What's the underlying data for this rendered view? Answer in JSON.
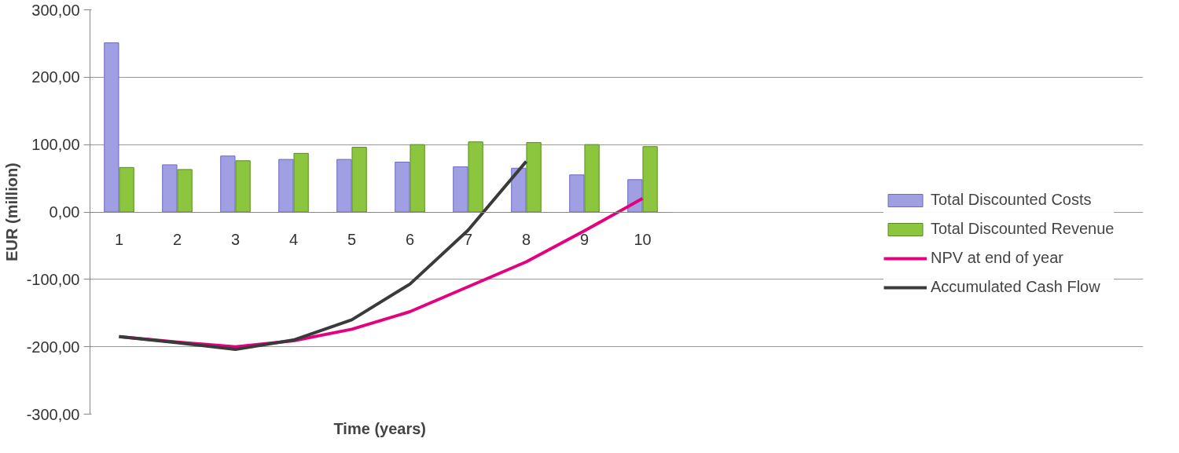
{
  "chart_data": {
    "type": "bar",
    "xlabel": "Time (years)",
    "ylabel": "EUR (million)",
    "categories": [
      "1",
      "2",
      "3",
      "4",
      "5",
      "6",
      "7",
      "8",
      "9",
      "10"
    ],
    "series": [
      {
        "name": "Total Discounted Costs",
        "color": "#a09fe3",
        "values": [
          251,
          70,
          83,
          78,
          78,
          74,
          67,
          65,
          55,
          48
        ]
      },
      {
        "name": "Total Discounted Revenue",
        "color": "#8cc63f",
        "values": [
          66,
          63,
          76,
          87,
          96,
          100,
          104,
          103,
          100,
          97
        ]
      },
      {
        "name": "NPV at end of year",
        "type": "line",
        "color": "#e5007e",
        "values": [
          -185,
          -193,
          -200,
          -191,
          -174,
          -148,
          -111,
          -74,
          -28,
          20
        ]
      },
      {
        "name": "Accumulated Cash Flow",
        "type": "line",
        "color": "#3a3a3a",
        "values": [
          -185,
          -194,
          -204,
          -190,
          -160,
          -107,
          -27,
          75,
          null,
          null
        ]
      }
    ],
    "ylim": [
      -300,
      300
    ],
    "yticks": [
      {
        "value": -300,
        "label": "-300,00"
      },
      {
        "value": -200,
        "label": "-200,00"
      },
      {
        "value": -100,
        "label": "-100,00"
      },
      {
        "value": 0,
        "label": "0,00"
      },
      {
        "value": 100,
        "label": "100,00"
      },
      {
        "value": 200,
        "label": "200,00"
      },
      {
        "value": 300,
        "label": "300,00"
      }
    ],
    "grid": "y",
    "legend": "right"
  }
}
